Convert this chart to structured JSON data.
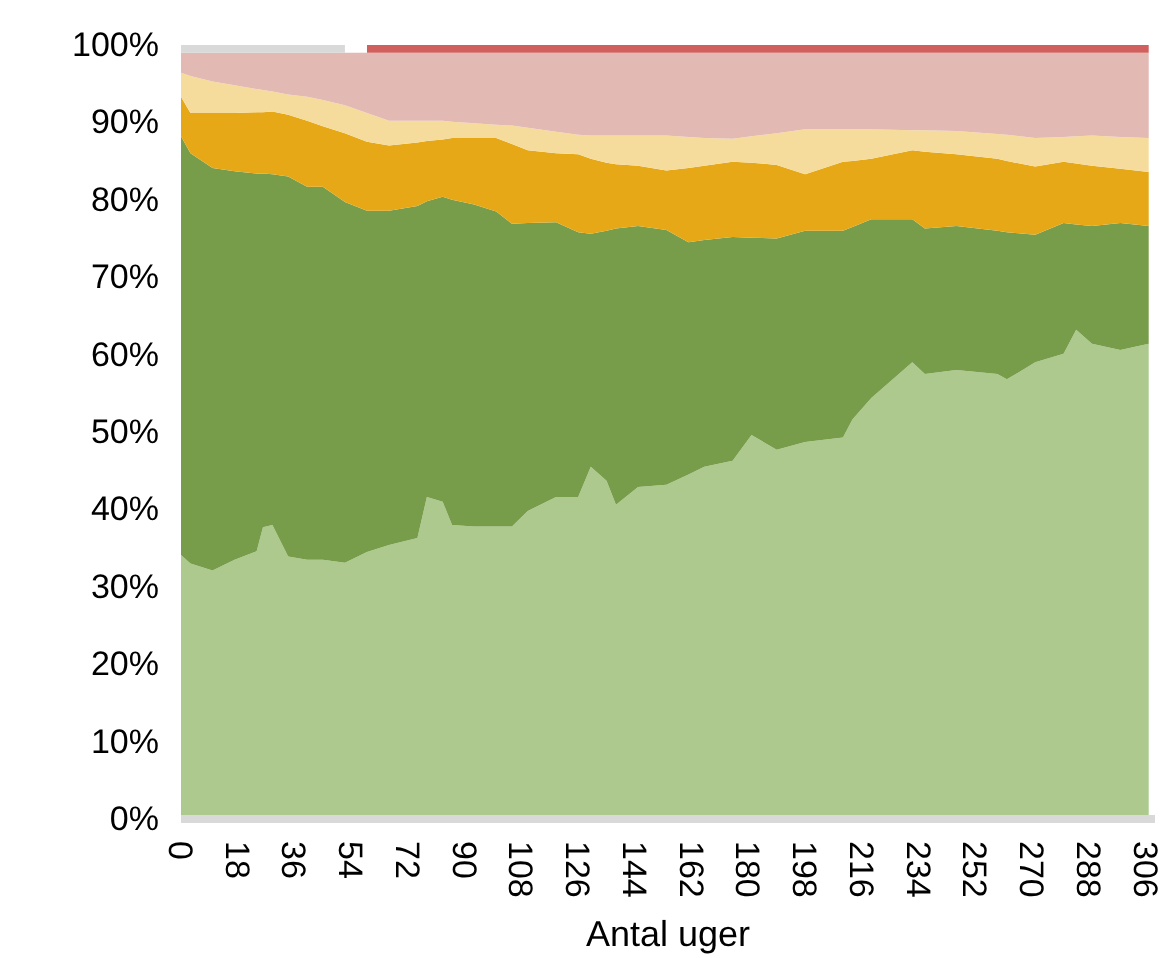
{
  "chart_data": {
    "type": "area",
    "stacked": true,
    "xlabel": "Antal uger",
    "x": [
      0,
      3,
      10,
      17,
      24,
      26,
      29,
      34,
      40,
      45,
      52,
      59,
      66,
      75,
      78,
      83,
      86,
      93,
      100,
      105,
      110,
      119,
      126,
      130,
      135,
      138,
      145,
      154,
      161,
      166,
      175,
      181,
      189,
      198,
      210,
      213,
      219,
      232,
      236,
      246,
      259,
      262,
      271,
      280,
      284,
      289,
      298,
      307
    ],
    "series": [
      {
        "color": "#adc98e",
        "values": [
          34.1,
          33,
          32.1,
          33.5,
          34.6,
          37.7,
          38,
          33.9,
          33.5,
          33.5,
          33.1,
          34.5,
          35.4,
          36.3,
          41.6,
          41,
          38,
          37.8,
          37.8,
          37.8,
          39.8,
          41.6,
          41.6,
          45.5,
          43.7,
          40.6,
          42.9,
          43.2,
          44.5,
          45.5,
          46.3,
          49.6,
          47.7,
          48.7,
          49.3,
          51.6,
          54.4,
          59,
          57.5,
          58,
          57.5,
          56.8,
          59,
          60.1,
          63.2,
          61.4,
          60.6,
          61.4
        ]
      },
      {
        "color": "#779d4a",
        "values": [
          54.1,
          53,
          52,
          50.2,
          48.8,
          45.7,
          45.3,
          49.1,
          48.2,
          48.2,
          46.6,
          44.1,
          43.2,
          42.9,
          38.2,
          39.4,
          42,
          41.6,
          40.7,
          39.1,
          37.2,
          35.5,
          34.2,
          30.1,
          32.3,
          35.7,
          33.7,
          32.9,
          30,
          29.3,
          28.9,
          25.5,
          27.3,
          27.3,
          26.7,
          24.9,
          23.1,
          18.5,
          18.8,
          18.6,
          18.5,
          19,
          16.5,
          16.9,
          13.6,
          15.2,
          16.4,
          15.2
        ]
      },
      {
        "color": "#e6a817",
        "values": [
          5.1,
          5.2,
          7.1,
          7.5,
          7.9,
          7.9,
          8.1,
          8,
          8.5,
          7.8,
          8.9,
          8.9,
          8.4,
          8.2,
          7.8,
          7.4,
          8,
          8.6,
          9.5,
          10.3,
          9.4,
          8.9,
          10.1,
          9.7,
          8.8,
          8.3,
          7.8,
          7.7,
          9.6,
          9.6,
          9.7,
          9.7,
          9.5,
          7.3,
          8.9,
          8.5,
          7.8,
          8.9,
          9.9,
          9.3,
          9.3,
          9.2,
          8.8,
          7.9,
          7.9,
          7.8,
          7,
          7
        ]
      },
      {
        "color": "#f6dc9c",
        "values": [
          3.1,
          4.8,
          4.1,
          3.6,
          3,
          2.9,
          2.6,
          2.6,
          3.1,
          3.4,
          3.6,
          3.7,
          3.2,
          2.8,
          2.6,
          2.4,
          2.1,
          1.9,
          1.7,
          2.4,
          2.9,
          2.8,
          2.5,
          3,
          3.5,
          3.7,
          3.9,
          4.5,
          4,
          3.6,
          3,
          3.4,
          4.1,
          5.8,
          4.2,
          4.1,
          3.8,
          2.6,
          2.8,
          3,
          3.2,
          3.4,
          3.7,
          3.2,
          3.5,
          3.9,
          4.1,
          4.4
        ]
      },
      {
        "color": "#e2b9b3",
        "values": [
          2.6,
          3,
          3.7,
          4.2,
          4.7,
          4.8,
          5,
          5.4,
          5.7,
          6.1,
          6.8,
          7.8,
          8.8,
          8.8,
          8.8,
          8.8,
          8.9,
          9.1,
          9.3,
          9.4,
          9.7,
          10.2,
          10.6,
          10.7,
          10.7,
          10.7,
          10.7,
          10.7,
          10.9,
          11,
          11.1,
          10.8,
          10.4,
          9.9,
          9.9,
          9.9,
          9.9,
          10,
          10,
          10.1,
          10.5,
          10.6,
          11,
          10.9,
          10.8,
          10.7,
          10.9,
          11
        ]
      },
      {
        "color": "#d9d9d9",
        "values": [
          1,
          1,
          1,
          1,
          1,
          1,
          1,
          1,
          1,
          1,
          1,
          null,
          null,
          null,
          null,
          null,
          null,
          null,
          null,
          null,
          null,
          null,
          null,
          null,
          null,
          null,
          null,
          null,
          null,
          null,
          null,
          null,
          null,
          null,
          null,
          null,
          null,
          null,
          null,
          null,
          null,
          null,
          null,
          null,
          null,
          null,
          null,
          null
        ]
      },
      {
        "color": "#d0605e",
        "values": [
          null,
          null,
          null,
          null,
          null,
          null,
          null,
          null,
          null,
          null,
          null,
          1,
          1,
          1,
          1,
          1,
          1,
          1,
          1,
          1,
          1,
          1,
          1,
          1,
          1,
          1,
          1,
          1,
          1,
          1,
          1,
          1,
          1,
          1,
          1,
          1,
          1,
          1,
          1,
          1,
          1,
          1,
          1,
          1,
          1,
          1,
          1,
          1
        ]
      }
    ],
    "xlim": [
      0,
      309
    ],
    "xticks": [
      0,
      18,
      36,
      54,
      72,
      90,
      108,
      126,
      144,
      162,
      180,
      198,
      216,
      234,
      252,
      270,
      288,
      306
    ],
    "ylim": [
      0,
      100
    ],
    "yticks": [
      {
        "value": 0,
        "label": "0%"
      },
      {
        "value": 10,
        "label": "10%"
      },
      {
        "value": 20,
        "label": "20%"
      },
      {
        "value": 30,
        "label": "30%"
      },
      {
        "value": 40,
        "label": "40%"
      },
      {
        "value": 50,
        "label": "50%"
      },
      {
        "value": 60,
        "label": "60%"
      },
      {
        "value": 70,
        "label": "70%"
      },
      {
        "value": 80,
        "label": "80%"
      },
      {
        "value": 90,
        "label": "90%"
      },
      {
        "value": 100,
        "label": "100%"
      }
    ]
  }
}
